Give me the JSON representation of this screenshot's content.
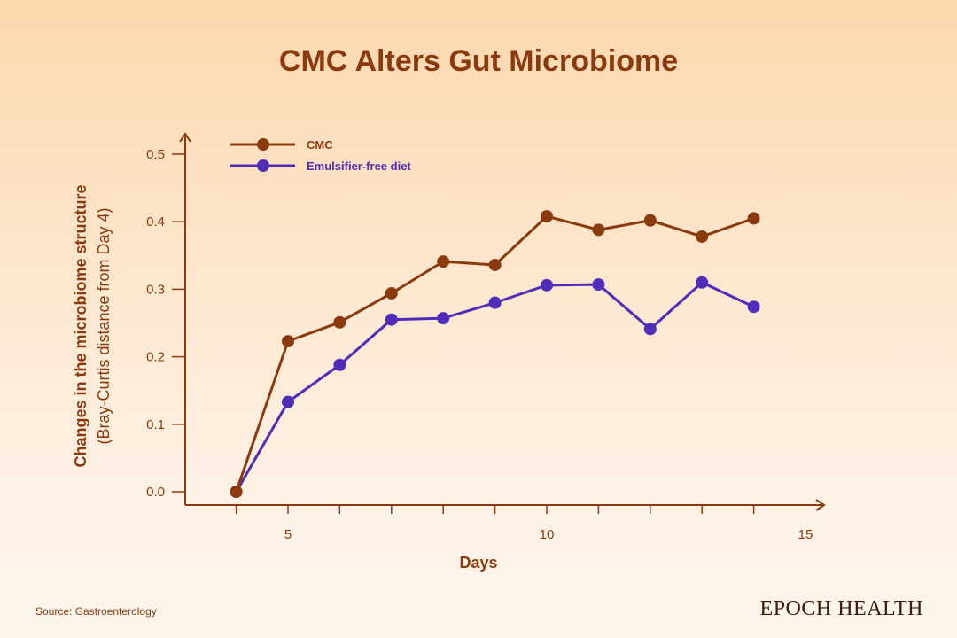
{
  "chart_data": {
    "type": "line",
    "title": "CMC Alters Gut Microbiome",
    "xlabel": "Days",
    "ylabel": "Changes in the microbiome structure",
    "ylabel_sub": "(Bray-Curtis distance from Day 4)",
    "xlim": [
      3,
      15
    ],
    "ylim": [
      0,
      0.5
    ],
    "x_ticks": [
      5,
      10,
      15
    ],
    "x_tick_labels": [
      "5",
      "10",
      "15"
    ],
    "y_ticks": [
      0,
      0.1,
      0.2,
      0.3,
      0.4,
      0.5
    ],
    "y_tick_labels": [
      "0.0",
      "0.1",
      "0.2",
      "0.3",
      "0.4",
      "0.5"
    ],
    "grid": false,
    "legend_position": "top-left",
    "x": [
      4,
      5,
      6,
      7,
      8,
      9,
      10,
      11,
      12,
      13,
      14
    ],
    "series": [
      {
        "name": "CMC",
        "color": "#8a3a0c",
        "values": [
          0.0,
          0.223,
          0.251,
          0.294,
          0.341,
          0.336,
          0.408,
          0.388,
          0.402,
          0.378,
          0.405
        ]
      },
      {
        "name": "Emulsifier-free diet",
        "color": "#4f2db8",
        "values": [
          0.0,
          0.133,
          0.188,
          0.255,
          0.257,
          0.28,
          0.306,
          0.307,
          0.241,
          0.31,
          0.274
        ]
      }
    ]
  },
  "footer": {
    "source": "Source: Gastroenterology",
    "brand": "EPOCH HEALTH"
  }
}
